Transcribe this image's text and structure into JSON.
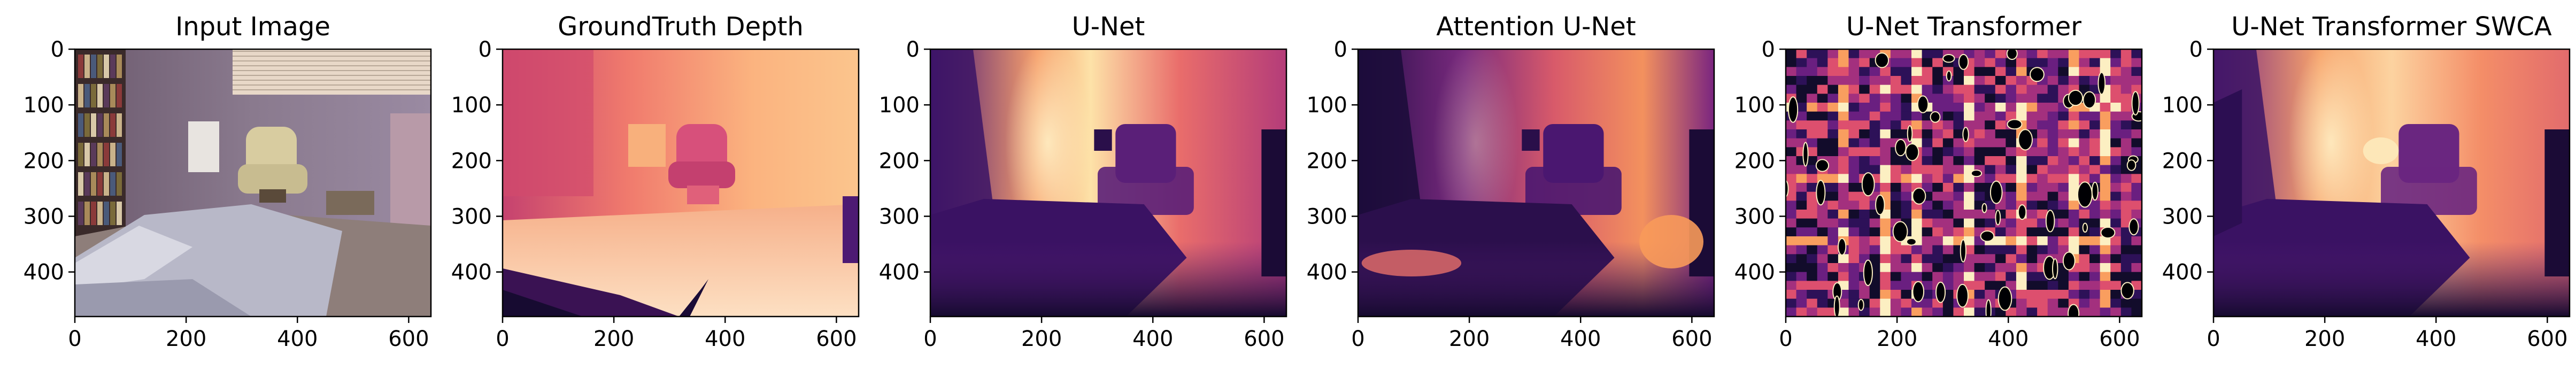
{
  "figure": {
    "panels": [
      {
        "title": "Input Image",
        "kind": "photo"
      },
      {
        "title": "GroundTruth Depth",
        "kind": "gt"
      },
      {
        "title": "U-Net",
        "kind": "unet"
      },
      {
        "title": "Attention U-Net",
        "kind": "attn"
      },
      {
        "title": "U-Net Transformer",
        "kind": "noise"
      },
      {
        "title": "U-Net Transformer SWCA",
        "kind": "swca"
      }
    ],
    "x_ticks": [
      "0",
      "200",
      "400",
      "600"
    ],
    "y_ticks": [
      "0",
      "100",
      "200",
      "300",
      "400"
    ],
    "image_extent": {
      "x": [
        0,
        640
      ],
      "y": [
        0,
        480
      ]
    },
    "x_tick_values": [
      0,
      200,
      400,
      600
    ],
    "y_tick_values": [
      0,
      100,
      200,
      300,
      400
    ],
    "colormap": "magma",
    "colors": {
      "magma_dark": "#120c2b",
      "magma_purple": "#6a1f80",
      "magma_pink": "#dd4f6e",
      "magma_orange": "#f99e5f",
      "magma_light": "#fcefc2"
    }
  }
}
